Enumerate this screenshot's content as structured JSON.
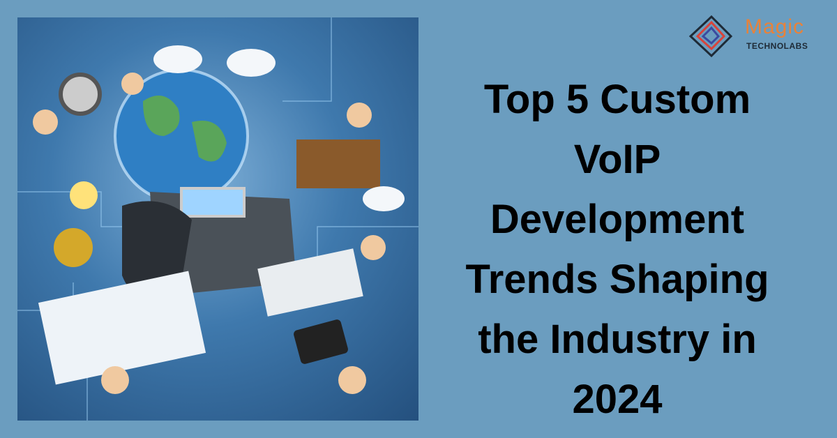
{
  "logo": {
    "brand": "Magic",
    "sub": "TECHNOLABS",
    "brand_color": "#e8823a"
  },
  "headline": [
    "Top 5 Custom",
    "VoIP",
    "Development",
    "Trends Shaping",
    "the Industry in",
    "2024"
  ],
  "colors": {
    "background": "#6b9dbf",
    "title": "#000000"
  }
}
